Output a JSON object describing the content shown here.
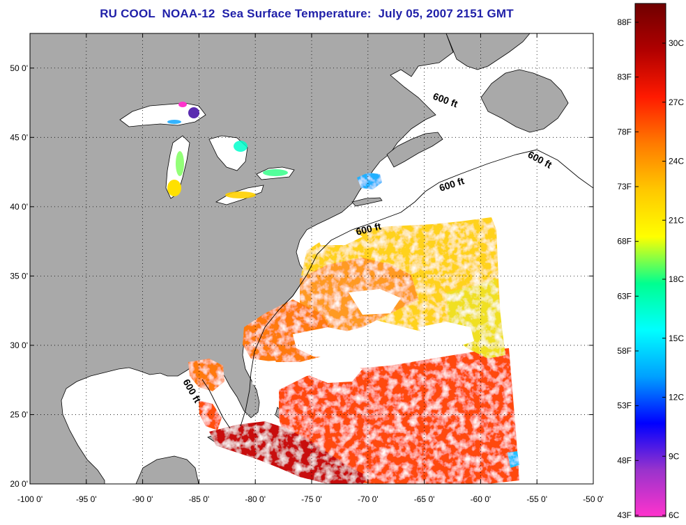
{
  "title": "RU COOL  NOAA-12  Sea Surface Temperature:  July 05, 2007 2151 GMT",
  "map": {
    "lon_range": [
      -100,
      -50
    ],
    "lat_range": [
      20,
      52.5
    ],
    "lon_ticks": [
      "-100 0'",
      "-95 0'",
      "-90 0'",
      "-85 0'",
      "-80 0'",
      "-75 0'",
      "-70 0'",
      "-65 0'",
      "-60 0'",
      "-55 0'",
      "-50 0'"
    ],
    "lat_ticks": [
      "20 0'",
      "25 0'",
      "30 0'",
      "35 0'",
      "40 0'",
      "45 0'",
      "50 0'"
    ],
    "land_color": "#a9a9a9",
    "no_data_color": "#ffffff",
    "grid": "dotted",
    "contour_label": "600 ft"
  },
  "colorbar": {
    "fahrenheit_labels": [
      "88F",
      "83F",
      "78F",
      "73F",
      "68F",
      "63F",
      "58F",
      "53F",
      "48F",
      "43F"
    ],
    "celsius_labels": [
      "30C",
      "27C",
      "24C",
      "21C",
      "18C",
      "15C",
      "12C",
      "9C",
      "6C"
    ],
    "colors": [
      "#ff33cc",
      "#9933cc",
      "#0000ff",
      "#00a0ff",
      "#00ffff",
      "#00ff90",
      "#ffff00",
      "#ffc800",
      "#ff7a00",
      "#ff1a00",
      "#b00000",
      "#700000"
    ]
  }
}
